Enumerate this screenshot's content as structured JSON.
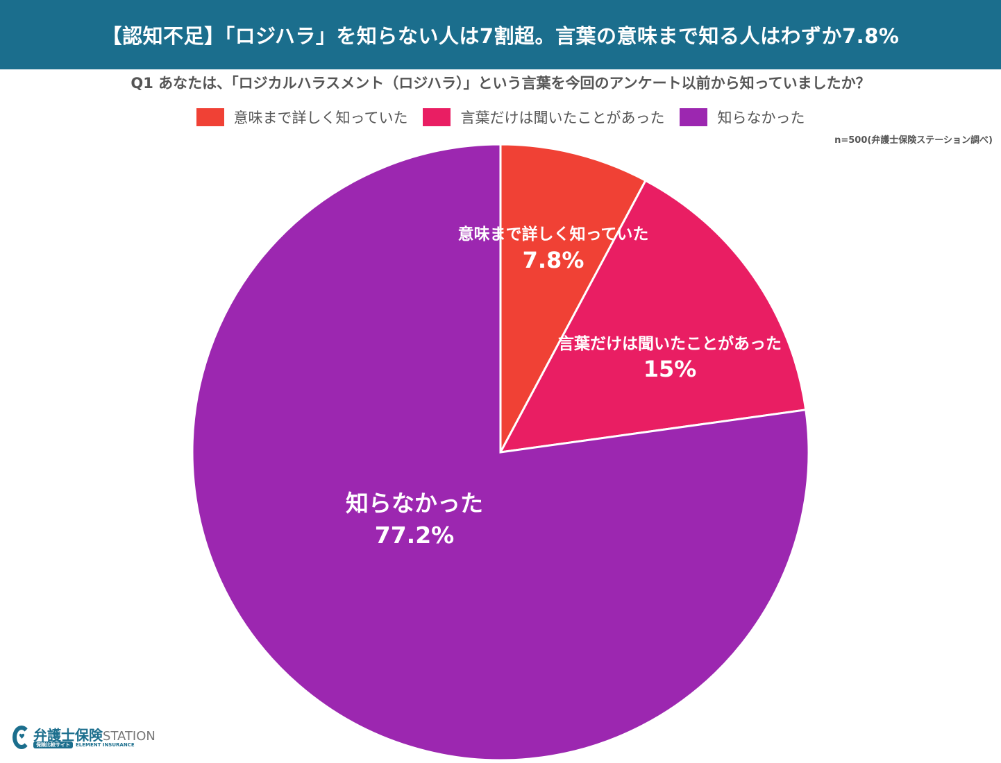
{
  "header": {
    "title": "【認知不足】「ロジハラ」を知らない人は7割超。言葉の意味まで知る人はわずか7.8%"
  },
  "source_note": "n=500(弁護士保険ステーション調べ)",
  "logo": {
    "name": "弁護士保険",
    "station": "STATION",
    "tag": "保険比較サイト",
    "company": "ELEMENT INSURANCE"
  },
  "chart_data": {
    "type": "pie",
    "title": "Q1 あなたは、「ロジカルハラスメント（ロジハラ）」という言葉を今回のアンケート以前から知っていましたか？",
    "legend_position": "top",
    "start_angle": "top, clockwise",
    "slices": [
      {
        "label": "意味まで詳しく知っていた",
        "value": 7.8,
        "value_label": "7.8%",
        "color": "#f04135"
      },
      {
        "label": "言葉だけは聞いたことがあった",
        "value": 15,
        "value_label": "15%",
        "color": "#e91e63"
      },
      {
        "label": "知らなかった",
        "value": 77.2,
        "value_label": "77.2%",
        "color": "#9c27b0"
      }
    ]
  }
}
